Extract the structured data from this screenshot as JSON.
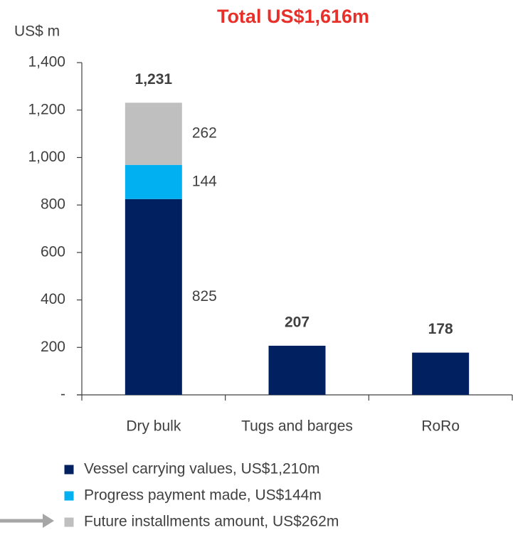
{
  "chart_data": {
    "type": "stacked_bar",
    "title": "Total US$1,616m",
    "y_label": "US$ m",
    "categories": [
      "Dry bulk",
      "Tugs and barges",
      "RoRo"
    ],
    "series": [
      {
        "name": "Vessel carrying values, US$1,210m",
        "color": "#002060",
        "values": [
          825,
          207,
          178
        ]
      },
      {
        "name": "Progress payment made, US$144m",
        "color": "#00b0f0",
        "values": [
          144,
          0,
          0
        ]
      },
      {
        "name": "Future installments amount, US$262m",
        "color": "#bfbfbf",
        "values": [
          262,
          0,
          0
        ]
      }
    ],
    "totals": [
      1231,
      207,
      178
    ],
    "total_labels": [
      "1,231",
      "207",
      "178"
    ],
    "ylim": [
      0,
      1400
    ],
    "yticks": [
      {
        "value": 0,
        "label": "-"
      },
      200,
      400,
      600,
      800,
      {
        "value": 1000,
        "label": "1,000"
      },
      {
        "value": 1200,
        "label": "1,200"
      },
      {
        "value": 1400,
        "label": "1,400"
      }
    ],
    "legend": "bottom"
  }
}
